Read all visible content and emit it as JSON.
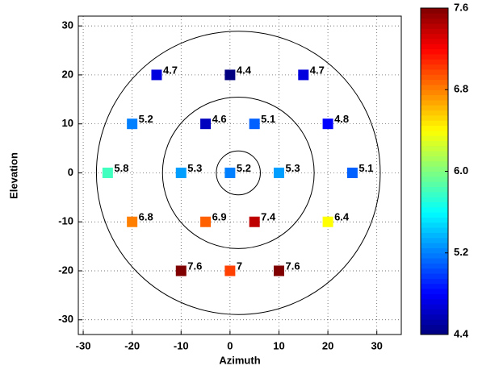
{
  "chart_data": {
    "type": "scatter",
    "xlabel": "Azimuth",
    "ylabel": "Elevation",
    "x": [
      -15,
      0,
      15,
      -20,
      -5,
      5,
      20,
      -25,
      -10,
      0,
      10,
      25,
      -20,
      -5,
      5,
      20,
      -10,
      0,
      10
    ],
    "y": [
      20,
      20,
      20,
      10,
      10,
      10,
      10,
      0,
      0,
      0,
      0,
      0,
      -10,
      -10,
      -10,
      -10,
      -20,
      -20,
      -20
    ],
    "values": [
      4.7,
      4.4,
      4.7,
      5.2,
      4.6,
      5.1,
      4.8,
      5.8,
      5.3,
      5.2,
      5.3,
      5.1,
      6.8,
      6.9,
      7.4,
      6.4,
      7.6,
      7,
      7.6
    ],
    "colormap": "jet",
    "clim": [
      4.4,
      7.6
    ],
    "cticks": [
      4.4,
      5.2,
      {
        "value": 6,
        "label": "6.0"
      },
      6.8,
      7.6
    ],
    "xlim": [
      -31,
      35
    ],
    "ylim": [
      -33,
      32
    ],
    "xticks": [
      -30,
      -20,
      -10,
      0,
      10,
      20,
      30
    ],
    "yticks": [
      -30,
      -20,
      -10,
      0,
      10,
      20,
      30
    ],
    "grid": true,
    "circles": {
      "cx": 1.7,
      "cy": 0,
      "r": [
        4.5,
        15.5,
        29
      ]
    }
  }
}
